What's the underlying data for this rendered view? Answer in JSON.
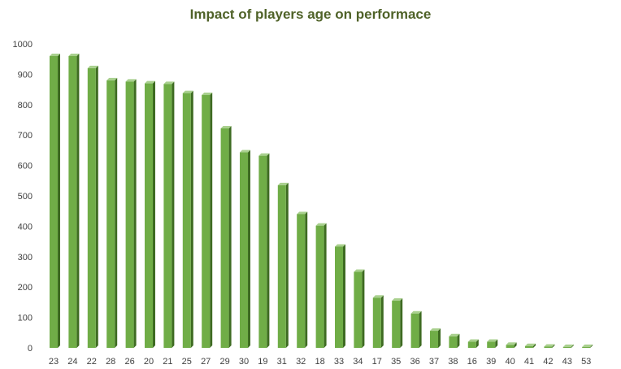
{
  "chart_data": {
    "type": "bar",
    "title": "Impact of players age on performace",
    "xlabel": "",
    "ylabel": "",
    "ylim": [
      0,
      1000
    ],
    "yticks": [
      0,
      100,
      200,
      300,
      400,
      500,
      600,
      700,
      800,
      900,
      1000
    ],
    "grid": false,
    "legend": "none",
    "bar_color": "#70ad47",
    "bar_side_color": "#3e6b22",
    "bar_top_color": "#a9d08e",
    "title_color": "#4f6228",
    "categories": [
      "23",
      "24",
      "22",
      "28",
      "26",
      "20",
      "21",
      "25",
      "27",
      "29",
      "30",
      "19",
      "31",
      "32",
      "18",
      "33",
      "34",
      "17",
      "35",
      "36",
      "37",
      "38",
      "16",
      "39",
      "40",
      "41",
      "42",
      "43",
      "53"
    ],
    "values": [
      960,
      960,
      920,
      880,
      876,
      870,
      868,
      838,
      832,
      722,
      643,
      632,
      535,
      440,
      402,
      333,
      250,
      165,
      155,
      113,
      56,
      38,
      20,
      20,
      10,
      6,
      4,
      3,
      3
    ]
  }
}
